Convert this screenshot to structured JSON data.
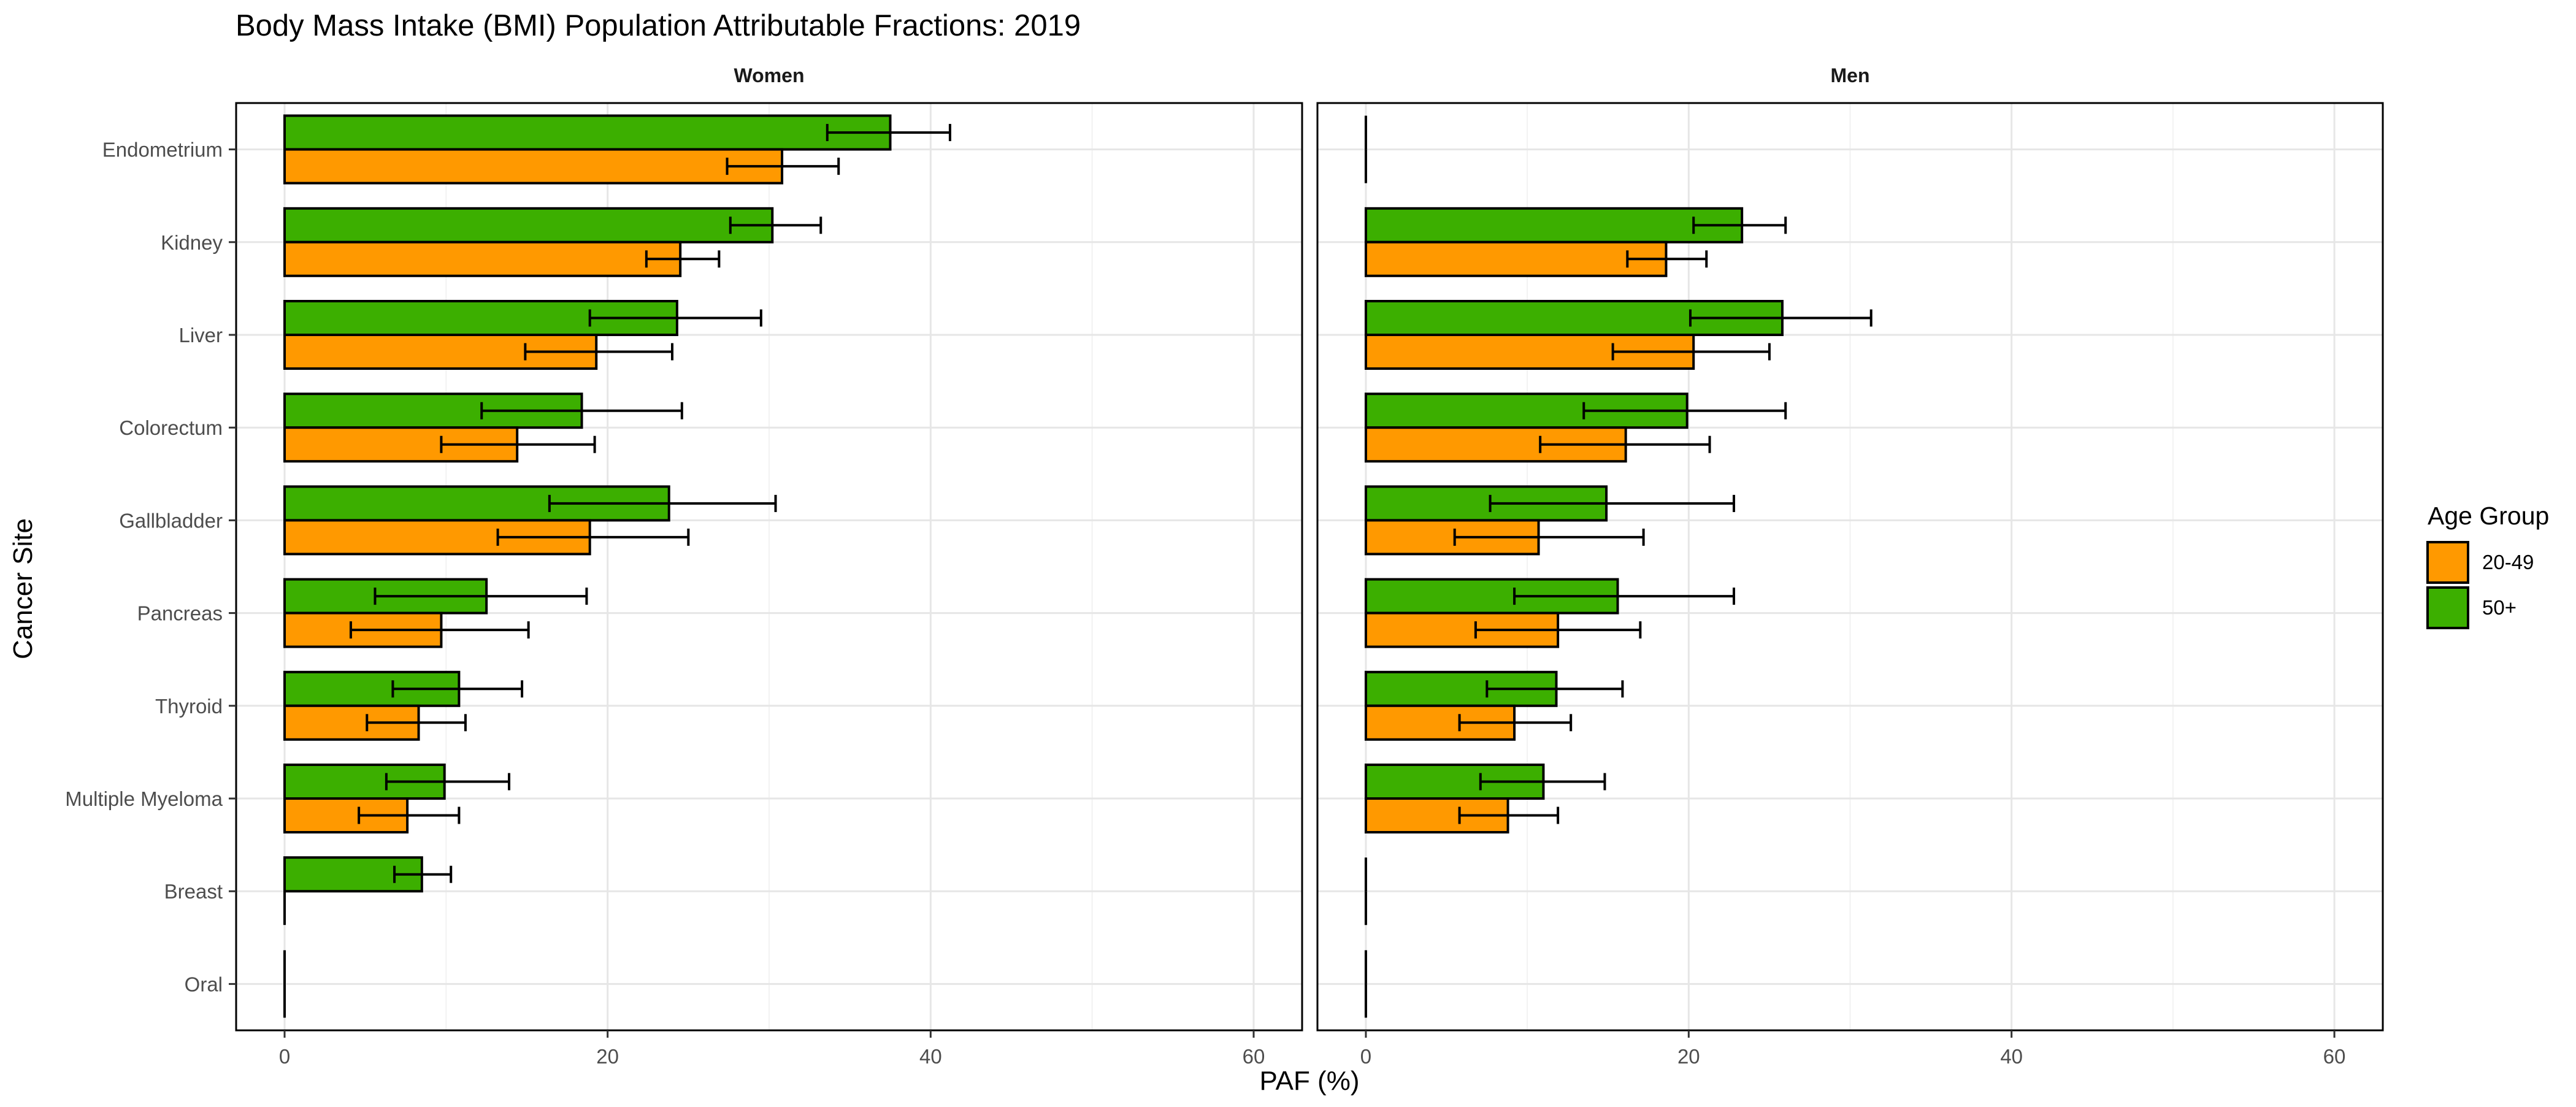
{
  "chart_data": {
    "type": "bar",
    "orientation": "horizontal",
    "title": "Body Mass Intake (BMI) Population Attributable Fractions: 2019",
    "xlabel": "PAF (%)",
    "ylabel": "Cancer Site",
    "xlim": [
      -3,
      63
    ],
    "x_ticks": [
      0,
      20,
      40,
      60
    ],
    "x_tick_labels": [
      "0",
      "20",
      "40",
      "60"
    ],
    "grid": true,
    "categories": [
      "Endometrium",
      "Kidney",
      "Liver",
      "Colorectum",
      "Gallbladder",
      "Pancreas",
      "Thyroid",
      "Multiple Myeloma",
      "Breast",
      "Oral"
    ],
    "legend": {
      "title": "Age Group",
      "position": "right",
      "items": [
        {
          "label": "20-49",
          "color": "#FF9900"
        },
        {
          "label": "50+",
          "color": "#3CAF00"
        }
      ]
    },
    "panels": [
      {
        "label": "Women",
        "series": [
          {
            "name": "20-49",
            "color": "#FF9900",
            "values": [
              30.8,
              24.5,
              19.3,
              14.4,
              18.9,
              9.7,
              8.3,
              7.6,
              0,
              0
            ],
            "lower": [
              27.4,
              22.4,
              14.9,
              9.7,
              13.2,
              4.1,
              5.1,
              4.6,
              null,
              null
            ],
            "upper": [
              34.3,
              26.9,
              24.0,
              19.2,
              25.0,
              15.1,
              11.2,
              10.8,
              null,
              null
            ]
          },
          {
            "name": "50+",
            "color": "#3CAF00",
            "values": [
              37.5,
              30.2,
              24.3,
              18.4,
              23.8,
              12.5,
              10.8,
              9.9,
              8.5,
              0
            ],
            "lower": [
              33.6,
              27.6,
              18.9,
              12.2,
              16.4,
              5.6,
              6.7,
              6.3,
              6.8,
              null
            ],
            "upper": [
              41.2,
              33.2,
              29.5,
              24.6,
              30.4,
              18.7,
              14.7,
              13.9,
              10.3,
              null
            ]
          }
        ]
      },
      {
        "label": "Men",
        "series": [
          {
            "name": "20-49",
            "color": "#FF9900",
            "values": [
              0,
              18.6,
              20.3,
              16.1,
              10.7,
              11.9,
              9.2,
              8.8,
              0,
              0
            ],
            "lower": [
              null,
              16.2,
              15.3,
              10.8,
              5.5,
              6.8,
              5.8,
              5.8,
              null,
              null
            ],
            "upper": [
              null,
              21.1,
              25.0,
              21.3,
              17.2,
              17.0,
              12.7,
              11.9,
              null,
              null
            ]
          },
          {
            "name": "50+",
            "color": "#3CAF00",
            "values": [
              0,
              23.3,
              25.8,
              19.9,
              14.9,
              15.6,
              11.8,
              11.0,
              0,
              0
            ],
            "lower": [
              null,
              20.3,
              20.1,
              13.5,
              7.7,
              9.2,
              7.5,
              7.1,
              null,
              null
            ],
            "upper": [
              null,
              26.0,
              31.3,
              26.0,
              22.8,
              22.8,
              15.9,
              14.8,
              null,
              null
            ]
          }
        ]
      }
    ]
  }
}
